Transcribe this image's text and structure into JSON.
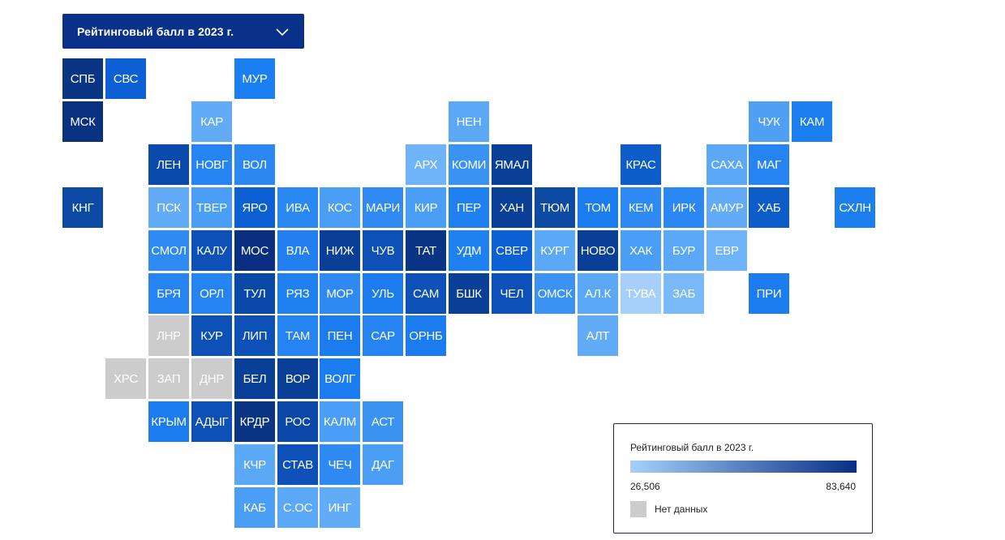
{
  "dropdown": {
    "label": "Рейтинговый балл в 2023 г."
  },
  "legend": {
    "title": "Рейтинговый балл в 2023 г.",
    "min": "26,506",
    "max": "83,640",
    "min_value": 26.506,
    "max_value": 83.64,
    "no_data_label": "Нет данных",
    "color_low": "#a6d0fb",
    "color_high": "#082f85",
    "no_data_color": "#cccccc"
  },
  "regions": [
    {
      "label": "СПБ",
      "col": 0,
      "row": 0,
      "color": "#0a3585"
    },
    {
      "label": "СВС",
      "col": 1,
      "row": 0,
      "color": "#0d5fd4"
    },
    {
      "label": "МУР",
      "col": 4,
      "row": 0,
      "color": "#1a7ff1"
    },
    {
      "label": "МСК",
      "col": 0,
      "row": 1,
      "color": "#08317f"
    },
    {
      "label": "КАР",
      "col": 3,
      "row": 1,
      "color": "#62acf7"
    },
    {
      "label": "НЕН",
      "col": 9,
      "row": 1,
      "color": "#5aa8f6"
    },
    {
      "label": "ЧУК",
      "col": 16,
      "row": 1,
      "color": "#4fa0f5"
    },
    {
      "label": "КАМ",
      "col": 17,
      "row": 1,
      "color": "#1b7ff0"
    },
    {
      "label": "ЛЕН",
      "col": 2,
      "row": 2,
      "color": "#0a4aac"
    },
    {
      "label": "НОВГ",
      "col": 3,
      "row": 2,
      "color": "#2584f1"
    },
    {
      "label": "ВОЛ",
      "col": 4,
      "row": 2,
      "color": "#2b88f2"
    },
    {
      "label": "АРХ",
      "col": 8,
      "row": 2,
      "color": "#6fb3f8"
    },
    {
      "label": "КОМИ",
      "col": 9,
      "row": 2,
      "color": "#3a93f3"
    },
    {
      "label": "ЯМАЛ",
      "col": 10,
      "row": 2,
      "color": "#0a3f98"
    },
    {
      "label": "КРАС",
      "col": 13,
      "row": 2,
      "color": "#0c5cc9"
    },
    {
      "label": "САХА",
      "col": 15,
      "row": 2,
      "color": "#5aa8f6"
    },
    {
      "label": "МАГ",
      "col": 16,
      "row": 2,
      "color": "#2584f1"
    },
    {
      "label": "КНГ",
      "col": 0,
      "row": 3,
      "color": "#0c4aa6"
    },
    {
      "label": "ПСК",
      "col": 2,
      "row": 3,
      "color": "#62acf7"
    },
    {
      "label": "ТВЕР",
      "col": 3,
      "row": 3,
      "color": "#4b9ef5"
    },
    {
      "label": "ЯРО",
      "col": 4,
      "row": 3,
      "color": "#0d5fd4"
    },
    {
      "label": "ИВА",
      "col": 5,
      "row": 3,
      "color": "#2a88f2"
    },
    {
      "label": "КОС",
      "col": 6,
      "row": 3,
      "color": "#4b9ef5"
    },
    {
      "label": "МАРИ",
      "col": 7,
      "row": 3,
      "color": "#2f8bf2"
    },
    {
      "label": "КИР",
      "col": 8,
      "row": 3,
      "color": "#4b9ef5"
    },
    {
      "label": "ПЕР",
      "col": 9,
      "row": 3,
      "color": "#1f80f0"
    },
    {
      "label": "ХАН",
      "col": 10,
      "row": 3,
      "color": "#0a3f98"
    },
    {
      "label": "ТЮМ",
      "col": 11,
      "row": 3,
      "color": "#0d4aa3"
    },
    {
      "label": "ТОМ",
      "col": 12,
      "row": 3,
      "color": "#1a7cee"
    },
    {
      "label": "КЕМ",
      "col": 13,
      "row": 3,
      "color": "#2e89f2"
    },
    {
      "label": "ИРК",
      "col": 14,
      "row": 3,
      "color": "#2b88f2"
    },
    {
      "label": "АМУР",
      "col": 15,
      "row": 3,
      "color": "#62acf7"
    },
    {
      "label": "ХАБ",
      "col": 16,
      "row": 3,
      "color": "#0c5cc9"
    },
    {
      "label": "СХЛН",
      "col": 18,
      "row": 3,
      "color": "#1b7ff0"
    },
    {
      "label": "СМОЛ",
      "col": 2,
      "row": 4,
      "color": "#2f8bf2"
    },
    {
      "label": "КАЛУ",
      "col": 3,
      "row": 4,
      "color": "#0c50b8"
    },
    {
      "label": "МОС",
      "col": 4,
      "row": 4,
      "color": "#0a2f80"
    },
    {
      "label": "ВЛА",
      "col": 5,
      "row": 4,
      "color": "#237ff0"
    },
    {
      "label": "НИЖ",
      "col": 6,
      "row": 4,
      "color": "#0a3f98"
    },
    {
      "label": "ЧУВ",
      "col": 7,
      "row": 4,
      "color": "#0c50b8"
    },
    {
      "label": "ТАТ",
      "col": 8,
      "row": 4,
      "color": "#0a3585"
    },
    {
      "label": "УДМ",
      "col": 9,
      "row": 4,
      "color": "#1f80f0"
    },
    {
      "label": "СВЕР",
      "col": 10,
      "row": 4,
      "color": "#0d5fd4"
    },
    {
      "label": "КУРГ",
      "col": 11,
      "row": 4,
      "color": "#5aa8f6"
    },
    {
      "label": "НОВО",
      "col": 12,
      "row": 4,
      "color": "#0a3f98"
    },
    {
      "label": "ХАК",
      "col": 13,
      "row": 4,
      "color": "#4b9ef5"
    },
    {
      "label": "БУР",
      "col": 14,
      "row": 4,
      "color": "#5aa8f6"
    },
    {
      "label": "ЕВР",
      "col": 15,
      "row": 4,
      "color": "#6fb3f8"
    },
    {
      "label": "БРЯ",
      "col": 2,
      "row": 5,
      "color": "#2584f1"
    },
    {
      "label": "ОРЛ",
      "col": 3,
      "row": 5,
      "color": "#2584f1"
    },
    {
      "label": "ТУЛ",
      "col": 4,
      "row": 5,
      "color": "#0a48a8"
    },
    {
      "label": "РЯЗ",
      "col": 5,
      "row": 5,
      "color": "#1f80f0"
    },
    {
      "label": "МОР",
      "col": 6,
      "row": 5,
      "color": "#2e89f2"
    },
    {
      "label": "УЛЬ",
      "col": 7,
      "row": 5,
      "color": "#1a7cee"
    },
    {
      "label": "САМ",
      "col": 8,
      "row": 5,
      "color": "#0c50b8"
    },
    {
      "label": "БШК",
      "col": 9,
      "row": 5,
      "color": "#0a3f98"
    },
    {
      "label": "ЧЕЛ",
      "col": 10,
      "row": 5,
      "color": "#0c50b8"
    },
    {
      "label": "ОМСК",
      "col": 11,
      "row": 5,
      "color": "#3a93f3"
    },
    {
      "label": "АЛ.К",
      "col": 12,
      "row": 5,
      "color": "#5aa8f6"
    },
    {
      "label": "ТУВА",
      "col": 13,
      "row": 5,
      "color": "#a6d0fb"
    },
    {
      "label": "ЗАБ",
      "col": 14,
      "row": 5,
      "color": "#7ab9f8"
    },
    {
      "label": "ПРИ",
      "col": 16,
      "row": 5,
      "color": "#1a7cee"
    },
    {
      "label": "ЛНР",
      "col": 2,
      "row": 6,
      "color": "#cccccc"
    },
    {
      "label": "КУР",
      "col": 3,
      "row": 6,
      "color": "#0c50b8"
    },
    {
      "label": "ЛИП",
      "col": 4,
      "row": 6,
      "color": "#0c50b8"
    },
    {
      "label": "ТАМ",
      "col": 5,
      "row": 6,
      "color": "#2584f1"
    },
    {
      "label": "ПЕН",
      "col": 6,
      "row": 6,
      "color": "#1a7cee"
    },
    {
      "label": "САР",
      "col": 7,
      "row": 6,
      "color": "#2584f1"
    },
    {
      "label": "ОРНБ",
      "col": 8,
      "row": 6,
      "color": "#1a7cee"
    },
    {
      "label": "АЛТ",
      "col": 12,
      "row": 6,
      "color": "#62acf7"
    },
    {
      "label": "ХРС",
      "col": 1,
      "row": 7,
      "color": "#cccccc"
    },
    {
      "label": "ЗАП",
      "col": 2,
      "row": 7,
      "color": "#cccccc"
    },
    {
      "label": "ДНР",
      "col": 3,
      "row": 7,
      "color": "#cccccc"
    },
    {
      "label": "БЕЛ",
      "col": 4,
      "row": 7,
      "color": "#0a3f98"
    },
    {
      "label": "ВОР",
      "col": 5,
      "row": 7,
      "color": "#0a3f98"
    },
    {
      "label": "ВОЛГ",
      "col": 6,
      "row": 7,
      "color": "#1a7cee"
    },
    {
      "label": "КРЫМ",
      "col": 2,
      "row": 8,
      "color": "#1a7cee"
    },
    {
      "label": "АДЫГ",
      "col": 3,
      "row": 8,
      "color": "#0c50b8"
    },
    {
      "label": "КРДР",
      "col": 4,
      "row": 8,
      "color": "#0a3585"
    },
    {
      "label": "РОС",
      "col": 5,
      "row": 8,
      "color": "#0a48a8"
    },
    {
      "label": "КАЛМ",
      "col": 6,
      "row": 8,
      "color": "#4b9ef5"
    },
    {
      "label": "АСТ",
      "col": 7,
      "row": 8,
      "color": "#3a93f3"
    },
    {
      "label": "КЧР",
      "col": 4,
      "row": 9,
      "color": "#5aa8f6"
    },
    {
      "label": "СТАВ",
      "col": 5,
      "row": 9,
      "color": "#0c50b8"
    },
    {
      "label": "ЧЕЧ",
      "col": 6,
      "row": 9,
      "color": "#2e89f2"
    },
    {
      "label": "ДАГ",
      "col": 7,
      "row": 9,
      "color": "#4b9ef5"
    },
    {
      "label": "КАБ",
      "col": 4,
      "row": 10,
      "color": "#4b9ef5"
    },
    {
      "label": "С.ОС",
      "col": 5,
      "row": 10,
      "color": "#5aa8f6"
    },
    {
      "label": "ИНГ",
      "col": 6,
      "row": 10,
      "color": "#62acf7"
    }
  ]
}
